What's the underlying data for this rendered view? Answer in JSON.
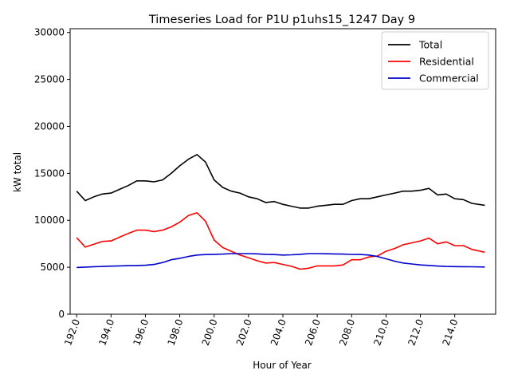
{
  "chart_data": {
    "type": "line",
    "title": "Timeseries Load for P1U p1uhs15_1247  Day 9",
    "xlabel": "Hour of Year",
    "ylabel": "kW total",
    "xlim": [
      191.62,
      216.38
    ],
    "ylim": [
      0,
      30400
    ],
    "x_ticks": [
      192,
      194,
      196,
      198,
      200,
      202,
      204,
      206,
      208,
      210,
      212,
      214
    ],
    "x_tick_labels": [
      "192.0",
      "194.0",
      "196.0",
      "198.0",
      "200.0",
      "202.0",
      "204.0",
      "206.0",
      "208.0",
      "210.0",
      "212.0",
      "214.0"
    ],
    "y_ticks": [
      0,
      5000,
      10000,
      15000,
      20000,
      25000,
      30000
    ],
    "y_tick_labels": [
      "0",
      "5000",
      "10000",
      "15000",
      "20000",
      "25000",
      "30000"
    ],
    "grid": false,
    "legend_position": "top-right",
    "x": [
      192.0,
      192.5,
      193.0,
      193.5,
      194.0,
      194.5,
      195.0,
      195.5,
      196.0,
      196.5,
      197.0,
      197.5,
      198.0,
      198.5,
      199.0,
      199.5,
      200.0,
      200.5,
      201.0,
      201.5,
      202.0,
      202.5,
      203.0,
      203.5,
      204.0,
      204.5,
      205.0,
      205.5,
      206.0,
      206.5,
      207.0,
      207.5,
      208.0,
      208.5,
      209.0,
      209.5,
      210.0,
      210.5,
      211.0,
      211.5,
      212.0,
      212.5,
      213.0,
      213.5,
      214.0,
      214.5,
      215.0,
      215.75
    ],
    "series": [
      {
        "name": "Total",
        "color": "#000000",
        "values": [
          13100,
          12100,
          12500,
          12800,
          12900,
          13300,
          13700,
          14200,
          14200,
          14100,
          14300,
          15000,
          15800,
          16500,
          17000,
          16200,
          14300,
          13500,
          13100,
          12900,
          12500,
          12300,
          11900,
          12000,
          11700,
          11500,
          11300,
          11300,
          11500,
          11600,
          11700,
          11700,
          12100,
          12300,
          12300,
          12500,
          12700,
          12900,
          13100,
          13100,
          13200,
          13400,
          12700,
          12800,
          12300,
          12200,
          11800,
          11600
        ]
      },
      {
        "name": "Residential",
        "color": "#ff0000",
        "values": [
          8150,
          7150,
          7450,
          7750,
          7800,
          8200,
          8600,
          8950,
          8950,
          8800,
          8950,
          9300,
          9800,
          10500,
          10800,
          9900,
          7900,
          7100,
          6700,
          6300,
          6000,
          5700,
          5450,
          5500,
          5300,
          5100,
          4800,
          4900,
          5150,
          5150,
          5150,
          5250,
          5800,
          5800,
          6100,
          6200,
          6700,
          7000,
          7400,
          7600,
          7800,
          8100,
          7500,
          7700,
          7300,
          7300,
          6900,
          6600
        ]
      },
      {
        "name": "Commercial",
        "color": "#0000cc",
        "values": [
          4980,
          5020,
          5060,
          5090,
          5120,
          5150,
          5170,
          5190,
          5210,
          5300,
          5500,
          5800,
          5950,
          6150,
          6300,
          6350,
          6380,
          6400,
          6450,
          6450,
          6450,
          6430,
          6380,
          6350,
          6300,
          6330,
          6380,
          6450,
          6450,
          6440,
          6420,
          6400,
          6370,
          6360,
          6300,
          6150,
          5900,
          5650,
          5450,
          5350,
          5250,
          5200,
          5130,
          5090,
          5070,
          5060,
          5050,
          5030
        ]
      }
    ]
  }
}
